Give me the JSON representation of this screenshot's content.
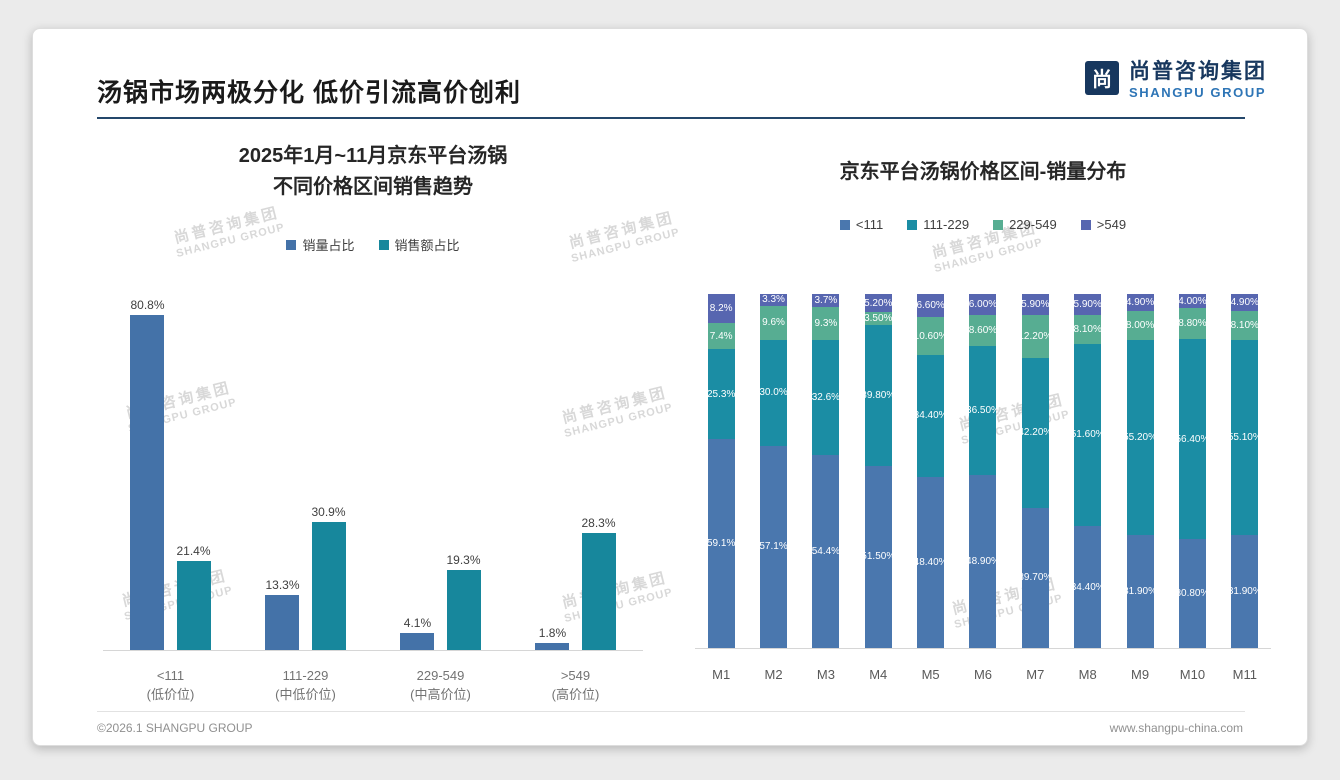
{
  "page": {
    "title": "汤锅市场两极分化 低价引流高价创利",
    "logo": {
      "icon": "尚",
      "cn": "尚普咨询集团",
      "en": "SHANGPU GROUP"
    },
    "watermark": {
      "cn": "尚普咨询集团",
      "en": "SHANGPU GROUP"
    },
    "footer": {
      "left": "©2026.1 SHANGPU GROUP",
      "right": "www.shangpu-china.com"
    }
  },
  "colors": {
    "accent_navy": "#17375e",
    "accent_blue": "#2e75b6",
    "series_blue": "#4472a8",
    "series_teal": "#17879c",
    "stack_blue": "#4a77ae",
    "stack_teal": "#1b8da4",
    "stack_green": "#57ad92",
    "stack_indigo": "#5766b0"
  },
  "chart_data": [
    {
      "type": "bar",
      "stacked": false,
      "title": "2025年1月~11月京东平台汤锅 不同价格区间销售趋势",
      "title_lines": [
        "2025年1月~11月京东平台汤锅",
        "不同价格区间销售趋势"
      ],
      "categories": [
        "<111",
        "111-229",
        "229-549",
        ">549"
      ],
      "category_sublabels": [
        "(低价位)",
        "(中低价位)",
        "(中高价位)",
        "(高价位)"
      ],
      "series": [
        {
          "name": "销量占比",
          "color": "#4472a8",
          "values": [
            80.8,
            13.3,
            4.1,
            1.8
          ]
        },
        {
          "name": "销售额占比",
          "color": "#17879c",
          "values": [
            21.4,
            30.9,
            19.3,
            28.3
          ]
        }
      ],
      "value_suffix": "%",
      "ylim": [
        0,
        85
      ],
      "grid": false,
      "legend_position": "top"
    },
    {
      "type": "bar",
      "stacked": true,
      "percent": true,
      "title": "京东平台汤锅价格区间-销量分布",
      "categories": [
        "M1",
        "M2",
        "M3",
        "M4",
        "M5",
        "M6",
        "M7",
        "M8",
        "M9",
        "M10",
        "M11"
      ],
      "series": [
        {
          "name": "<111",
          "color": "#4a77ae",
          "values": [
            59.1,
            57.1,
            54.4,
            51.5,
            48.4,
            48.9,
            39.7,
            34.4,
            31.9,
            30.8,
            31.9
          ]
        },
        {
          "name": "111-229",
          "color": "#1b8da4",
          "values": [
            25.3,
            30.0,
            32.6,
            39.8,
            34.4,
            36.5,
            42.2,
            51.6,
            55.2,
            56.4,
            55.1
          ]
        },
        {
          "name": "229-549",
          "color": "#57ad92",
          "values": [
            7.4,
            9.6,
            9.3,
            3.5,
            10.6,
            8.6,
            12.2,
            8.1,
            8.0,
            8.8,
            8.1
          ]
        },
        {
          "name": ">549",
          "color": "#5766b0",
          "values": [
            8.2,
            3.3,
            3.7,
            5.2,
            6.6,
            6.0,
            5.9,
            5.9,
            4.9,
            4.0,
            4.9
          ]
        }
      ],
      "label_decimals": [
        1,
        1,
        1,
        2,
        2,
        2,
        2,
        2,
        2,
        2,
        2
      ],
      "value_suffix": "%",
      "ylim": [
        0,
        100
      ],
      "grid": false,
      "legend_position": "top"
    }
  ]
}
